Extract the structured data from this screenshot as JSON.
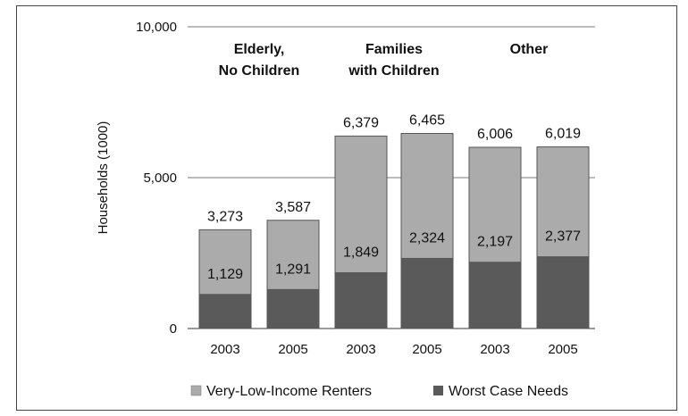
{
  "chart_data": {
    "type": "bar",
    "stacked": false,
    "overlapping_bars": true,
    "ylabel": "Households (1000)",
    "ylim": [
      0,
      10000
    ],
    "yticks": [
      0,
      5000,
      10000
    ],
    "ytick_labels": [
      "0",
      "5,000",
      "10,000"
    ],
    "grid": "horizontal",
    "groups": [
      {
        "label_lines": [
          "Elderly,",
          "No Children"
        ]
      },
      {
        "label_lines": [
          "Families",
          "with Children"
        ]
      },
      {
        "label_lines": [
          "Other"
        ]
      }
    ],
    "categories": [
      "2003",
      "2005",
      "2003",
      "2005",
      "2003",
      "2005"
    ],
    "series": [
      {
        "name": "Very-Low-Income Renters",
        "color": "#ababab",
        "values": [
          3273,
          3587,
          6379,
          6465,
          6006,
          6019
        ],
        "value_labels": [
          "3,273",
          "3,587",
          "6,379",
          "6,465",
          "6,006",
          "6,019"
        ]
      },
      {
        "name": "Worst Case Needs",
        "color": "#5a5a5a",
        "values": [
          1129,
          1291,
          1849,
          2324,
          2197,
          2377
        ],
        "value_labels": [
          "1,129",
          "1,291",
          "1,849",
          "2,324",
          "2,197",
          "2,377"
        ]
      }
    ],
    "legend_position": "bottom"
  }
}
